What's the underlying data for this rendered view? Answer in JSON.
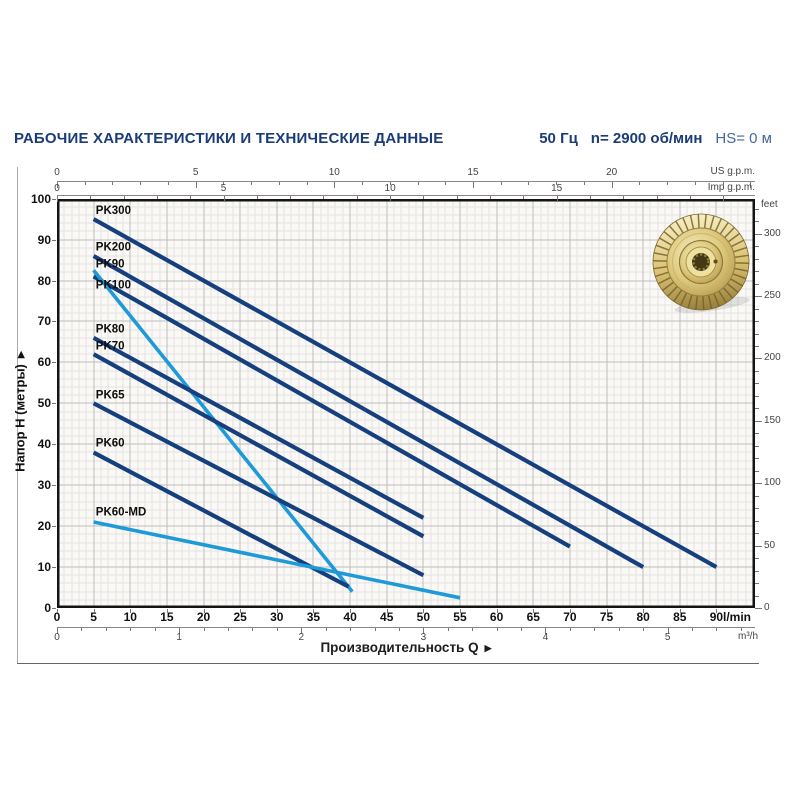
{
  "header": {
    "title": "РАБОЧИЕ ХАРАКТЕРИСТИКИ И ТЕХНИЧЕСКИЕ ДАННЫЕ",
    "frequency": "50 Гц",
    "speed": "n= 2900 об/мин",
    "suction_head": "HS= 0 м"
  },
  "chart_data": {
    "type": "line",
    "title": "",
    "xlabel": "Производительность Q",
    "ylabel": "Напор H (метры)",
    "xlim_lmin": [
      0,
      95.2
    ],
    "ylim_m": [
      0,
      100
    ],
    "grid": {
      "minor_x_lmin": 1,
      "major_x_lmin": 5,
      "minor_y_m": 2,
      "major_y_m": 10
    },
    "x_axis": {
      "unit": "l/min",
      "ticks_lmin": [
        0,
        5,
        10,
        15,
        20,
        25,
        30,
        35,
        40,
        45,
        50,
        55,
        60,
        65,
        70,
        75,
        80,
        85,
        90
      ],
      "secondary_unit": "m³/h",
      "ticks_m3h": [
        0,
        1,
        2,
        3,
        4,
        5
      ],
      "top_scale_us": {
        "label": "US g.p.m.",
        "ticks": [
          0,
          5,
          10,
          15,
          20
        ],
        "lmin_per_unit": 3.785,
        "minor_max": 25
      },
      "top_scale_imp": {
        "label": "Imp g.p.m.",
        "ticks": [
          0,
          5,
          10,
          15
        ],
        "lmin_per_unit": 4.546,
        "minor_max": 20
      }
    },
    "y_axis": {
      "unit": "метры",
      "ticks_m": [
        0,
        10,
        20,
        30,
        40,
        50,
        60,
        70,
        80,
        90,
        100
      ],
      "right_scale": {
        "label": "feet",
        "ticks": [
          0,
          50,
          100,
          150,
          200,
          250,
          300
        ],
        "m_per_unit": 0.3048,
        "minor_step": 10,
        "minor_max": 320
      }
    },
    "series": [
      {
        "name": "PK300",
        "color": "#16407d",
        "points": [
          [
            5,
            95
          ],
          [
            90,
            10
          ]
        ],
        "label_at": [
          5.3,
          96.3
        ]
      },
      {
        "name": "PK200",
        "color": "#16407d",
        "points": [
          [
            5,
            86
          ],
          [
            80,
            10
          ]
        ],
        "label_at": [
          5.3,
          87.3
        ]
      },
      {
        "name": "PK90",
        "color": "#16407d",
        "points": [
          [
            5,
            81
          ],
          [
            70,
            15
          ]
        ],
        "label_at": [
          5.3,
          83.2
        ]
      },
      {
        "name": "PK100",
        "color": "#1e9ad8",
        "points": [
          [
            5,
            82.5
          ],
          [
            40.3,
            4
          ]
        ],
        "label_at": [
          5.3,
          78.1
        ]
      },
      {
        "name": "PK80",
        "color": "#16407d",
        "points": [
          [
            5,
            66
          ],
          [
            50,
            22
          ]
        ],
        "label_at": [
          5.3,
          67.3
        ]
      },
      {
        "name": "PK70",
        "color": "#16407d",
        "points": [
          [
            5,
            62
          ],
          [
            50,
            17.5
          ]
        ],
        "label_at": [
          5.3,
          63.1
        ]
      },
      {
        "name": "PK65",
        "color": "#16407d",
        "points": [
          [
            5,
            50
          ],
          [
            50,
            8
          ]
        ],
        "label_at": [
          5.3,
          51.2
        ]
      },
      {
        "name": "PK60",
        "color": "#16407d",
        "points": [
          [
            5,
            38
          ],
          [
            39.8,
            5.2
          ]
        ],
        "label_at": [
          5.3,
          39.4
        ]
      },
      {
        "name": "PK60-MD",
        "color": "#1e9ad8",
        "points": [
          [
            5,
            21
          ],
          [
            55,
            2.5
          ]
        ],
        "label_at": [
          5.3,
          22.6
        ]
      }
    ]
  },
  "colors": {
    "navy_curve": "#16407d",
    "light_blue_curve": "#1e9ad8",
    "title_navy": "#1b3c78",
    "hs_blue": "#44679f",
    "grid_minor": "#e4e4e2",
    "grid_major": "#bdbdbd",
    "plot_bg": "#faf9f6",
    "frame": "#141414",
    "brass": "#d9c26f"
  }
}
